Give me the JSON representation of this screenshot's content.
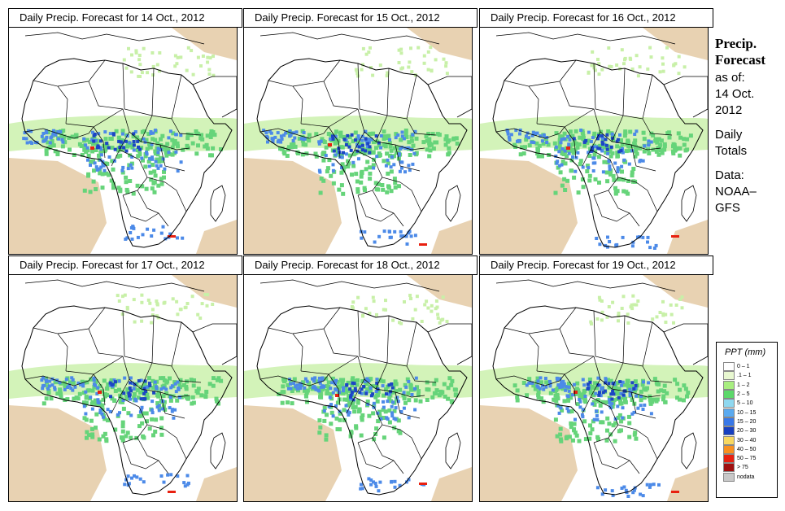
{
  "panels": [
    {
      "title": "Daily Precip. Forecast for  14 Oct., 2012",
      "variant": 0
    },
    {
      "title": "Daily Precip. Forecast for  15 Oct., 2012",
      "variant": 1
    },
    {
      "title": "Daily Precip. Forecast for  16 Oct., 2012",
      "variant": 2
    },
    {
      "title": "Daily Precip. Forecast for  17 Oct., 2012",
      "variant": 3
    },
    {
      "title": "Daily Precip. Forecast for  18 Oct., 2012",
      "variant": 4
    },
    {
      "title": "Daily Precip. Forecast for  19 Oct., 2012",
      "variant": 5
    }
  ],
  "side": {
    "title_line1": "Precip.",
    "title_line2": "Forecast",
    "as_of": "as of:",
    "date_line1": "14 Oct.",
    "date_line2": "2012",
    "totals_line1": "Daily",
    "totals_line2": "Totals",
    "data_line1": "Data:",
    "data_line2": "NOAA–",
    "data_line3": "GFS"
  },
  "legend": {
    "title": "PPT (mm)",
    "items": [
      {
        "label": "0 – 1",
        "color": "#ffffff"
      },
      {
        "label": ".1 – 1",
        "color": "#e8f8d0"
      },
      {
        "label": "1 – 2",
        "color": "#a8ee80"
      },
      {
        "label": "2 – 5",
        "color": "#5cd86a"
      },
      {
        "label": "5 – 10",
        "color": "#8fd8f0"
      },
      {
        "label": "10 – 15",
        "color": "#5aaaf0"
      },
      {
        "label": "15 – 20",
        "color": "#3878e8"
      },
      {
        "label": "20 – 30",
        "color": "#1840c0"
      },
      {
        "label": "30 – 40",
        "color": "#f8d860"
      },
      {
        "label": "40 – 50",
        "color": "#f89020"
      },
      {
        "label": "50 – 75",
        "color": "#e82010"
      },
      {
        "label": "> 75",
        "color": "#a01010"
      },
      {
        "label": "nodata",
        "color": "#c8c8c8"
      }
    ]
  },
  "colors": {
    "dry": "#e8d2b2",
    "light": "#c8f0a8",
    "green": "#66d47a",
    "blue": "#4c8ae8",
    "dark_blue": "#1c46c4",
    "heavy": "#e82010",
    "border": "#000000"
  }
}
